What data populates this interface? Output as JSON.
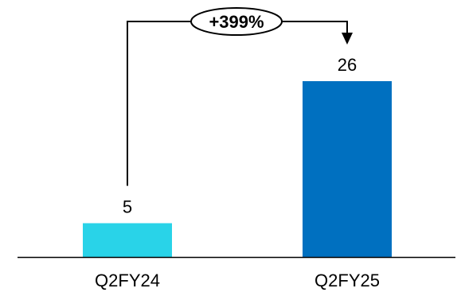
{
  "chart_data": {
    "type": "bar",
    "categories": [
      "Q2FY24",
      "Q2FY25"
    ],
    "values": [
      5,
      26
    ],
    "data_labels": [
      "5",
      "26"
    ],
    "title": "",
    "xlabel": "",
    "ylabel": "",
    "ylim": [
      0,
      30
    ],
    "grid": false,
    "legend": "none",
    "colors": [
      "#29d3e8",
      "#0070c0"
    ],
    "annotation": {
      "text": "+399%",
      "from": "Q2FY24",
      "to": "Q2FY25"
    }
  }
}
